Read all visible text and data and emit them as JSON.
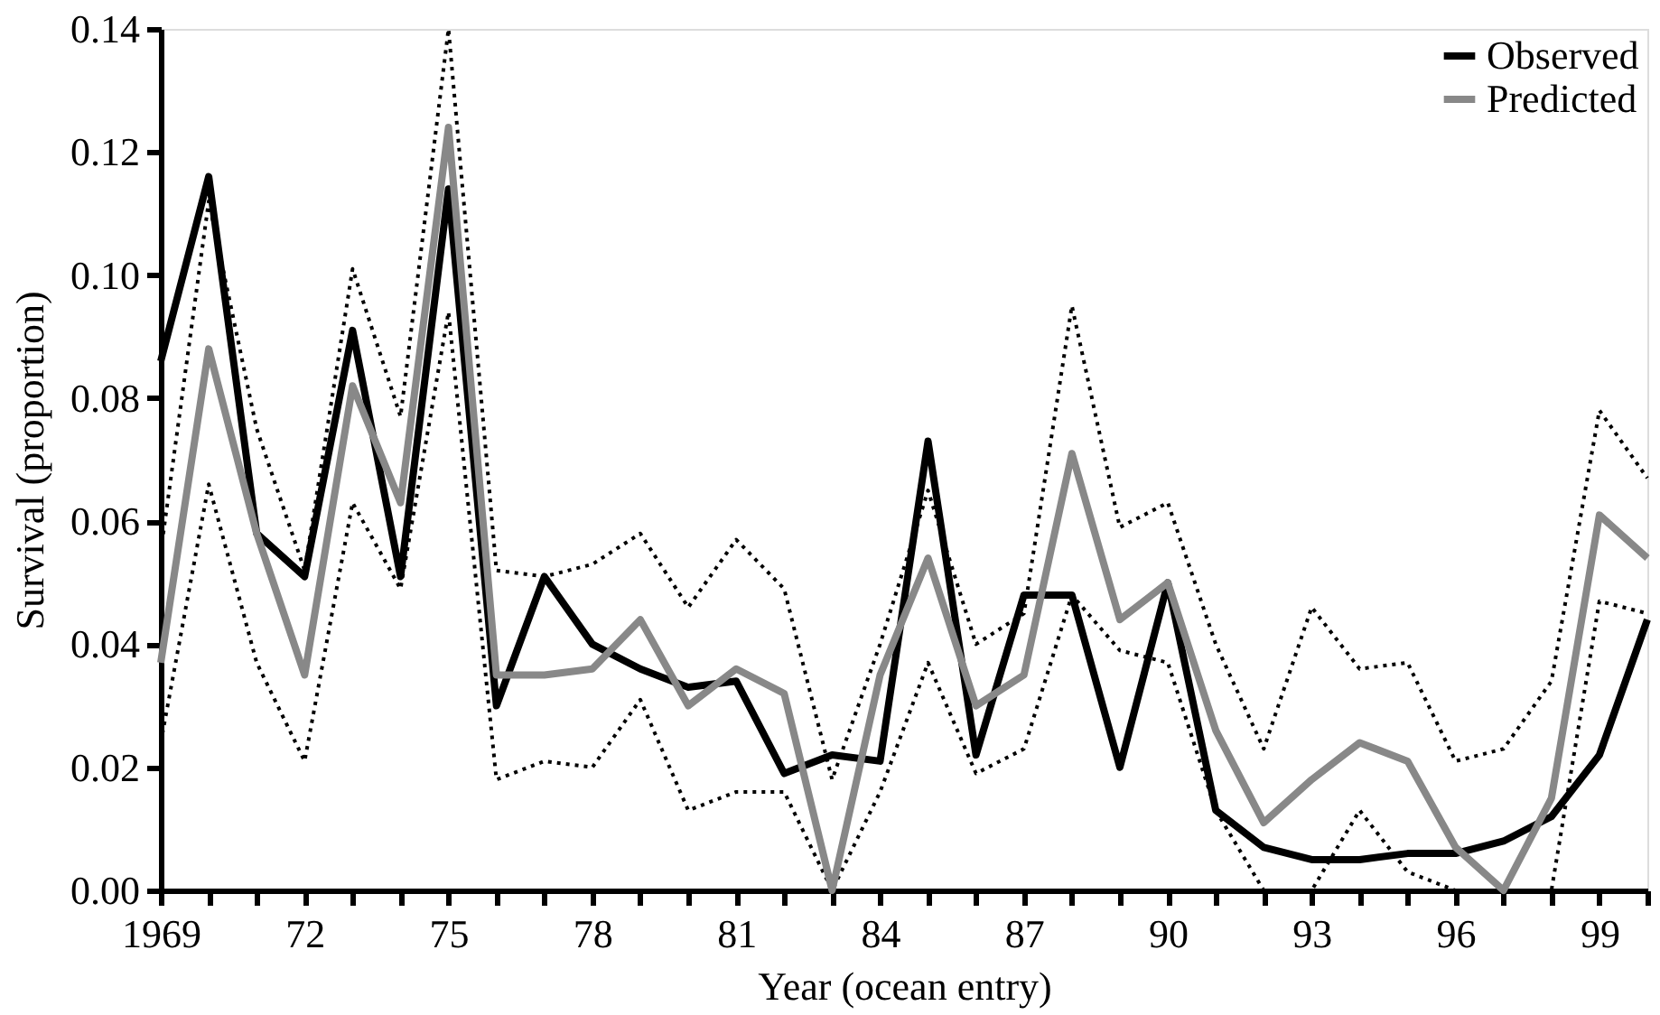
{
  "chart_data": {
    "type": "line",
    "xlabel": "Year (ocean entry)",
    "ylabel": "Survival (proportion)",
    "x": [
      1969,
      1970,
      1971,
      1972,
      1973,
      1974,
      1975,
      1976,
      1977,
      1978,
      1979,
      1980,
      1981,
      1982,
      1983,
      1984,
      1985,
      1986,
      1987,
      1988,
      1989,
      1990,
      1991,
      1992,
      1993,
      1994,
      1995,
      1996,
      1997,
      1998,
      1999,
      2000
    ],
    "series": [
      {
        "name": "Observed",
        "color": "#000000",
        "line_style": "solid",
        "values": [
          0.086,
          0.116,
          0.058,
          0.051,
          0.091,
          0.051,
          0.114,
          0.03,
          0.051,
          0.04,
          0.036,
          0.033,
          0.034,
          0.019,
          0.022,
          0.021,
          0.073,
          0.022,
          0.048,
          0.048,
          0.02,
          0.05,
          0.013,
          0.007,
          0.005,
          0.005,
          0.006,
          0.006,
          0.008,
          0.012,
          0.022,
          0.044
        ]
      },
      {
        "name": "Predicted",
        "color": "#888888",
        "line_style": "solid",
        "values": [
          0.037,
          0.088,
          0.058,
          0.035,
          0.082,
          0.063,
          0.124,
          0.035,
          0.035,
          0.036,
          0.044,
          0.03,
          0.036,
          0.032,
          0.0,
          0.035,
          0.054,
          0.03,
          0.035,
          0.071,
          0.044,
          0.05,
          0.026,
          0.011,
          0.018,
          0.024,
          0.021,
          0.007,
          0.0,
          0.015,
          0.061,
          0.054
        ]
      },
      {
        "color": "#000000",
        "line_style": "dotted",
        "values": [
          0.055,
          0.112,
          0.075,
          0.052,
          0.101,
          0.077,
          0.14,
          0.052,
          0.051,
          0.053,
          0.058,
          0.046,
          0.057,
          0.049,
          0.018,
          0.04,
          0.065,
          0.04,
          0.045,
          0.095,
          0.059,
          0.063,
          0.04,
          0.023,
          0.046,
          0.036,
          0.037,
          0.021,
          0.023,
          0.034,
          0.078,
          0.067
        ]
      },
      {
        "color": "#000000",
        "line_style": "dotted",
        "values": [
          0.024,
          0.066,
          0.037,
          0.021,
          0.063,
          0.049,
          0.094,
          0.018,
          0.021,
          0.02,
          0.031,
          0.013,
          0.016,
          0.016,
          0.0,
          0.016,
          0.037,
          0.019,
          0.023,
          0.048,
          0.039,
          0.037,
          0.013,
          0.0,
          0.0,
          0.013,
          0.003,
          0.0,
          0.0,
          0.0,
          0.047,
          0.045
        ]
      }
    ],
    "xlim": [
      1969,
      2000
    ],
    "xticks": [
      {
        "value": 1969,
        "label": "1969"
      },
      {
        "value": 1970,
        "label": null
      },
      {
        "value": 1971,
        "label": null
      },
      {
        "value": 1972,
        "label": "72"
      },
      {
        "value": 1973,
        "label": null
      },
      {
        "value": 1974,
        "label": null
      },
      {
        "value": 1975,
        "label": "75"
      },
      {
        "value": 1976,
        "label": null
      },
      {
        "value": 1977,
        "label": null
      },
      {
        "value": 1978,
        "label": "78"
      },
      {
        "value": 1979,
        "label": null
      },
      {
        "value": 1980,
        "label": null
      },
      {
        "value": 1981,
        "label": "81"
      },
      {
        "value": 1982,
        "label": null
      },
      {
        "value": 1983,
        "label": null
      },
      {
        "value": 1984,
        "label": "84"
      },
      {
        "value": 1985,
        "label": null
      },
      {
        "value": 1986,
        "label": null
      },
      {
        "value": 1987,
        "label": "87"
      },
      {
        "value": 1988,
        "label": null
      },
      {
        "value": 1989,
        "label": null
      },
      {
        "value": 1990,
        "label": "90"
      },
      {
        "value": 1991,
        "label": null
      },
      {
        "value": 1992,
        "label": null
      },
      {
        "value": 1993,
        "label": "93"
      },
      {
        "value": 1994,
        "label": null
      },
      {
        "value": 1995,
        "label": null
      },
      {
        "value": 1996,
        "label": "96"
      },
      {
        "value": 1997,
        "label": null
      },
      {
        "value": 1998,
        "label": null
      },
      {
        "value": 1999,
        "label": "99"
      },
      {
        "value": 2000,
        "label": null
      }
    ],
    "ylim": [
      0,
      0.14
    ],
    "yticks": [
      {
        "value": 0,
        "label": "0.00"
      },
      {
        "value": 0.02,
        "label": "0.02"
      },
      {
        "value": 0.04,
        "label": "0.04"
      },
      {
        "value": 0.06,
        "label": "0.06"
      },
      {
        "value": 0.08,
        "label": "0.08"
      },
      {
        "value": 0.1,
        "label": "0.10"
      },
      {
        "value": 0.12,
        "label": "0.12"
      },
      {
        "value": 0.14,
        "label": "0.14"
      }
    ],
    "grid": false,
    "legend": "top right",
    "marker": "none"
  }
}
